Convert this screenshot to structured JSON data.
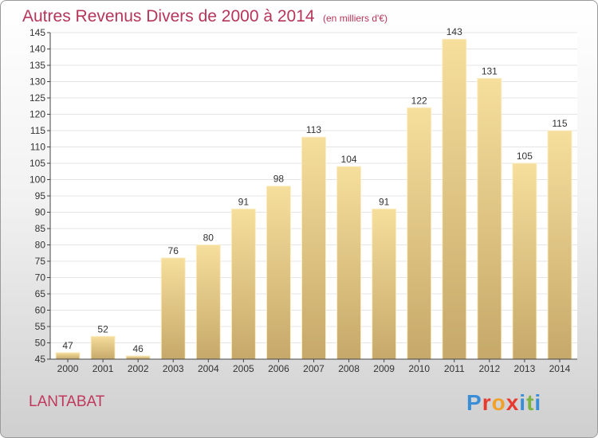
{
  "header": {
    "title": "Autres Revenus Divers de 2000 à 2014",
    "unit": "(en milliers d'€)"
  },
  "footer": {
    "commune": "LANTABAT",
    "logo": "Proxiti"
  },
  "colors": {
    "title": "#b5365a",
    "bar_light": "#f4dc9a",
    "bar_dark": "#c8ac6a",
    "axis": "#444444",
    "grid": "#e2e2e2"
  },
  "chart_data": {
    "type": "bar",
    "categories": [
      "2000",
      "2001",
      "2002",
      "2003",
      "2004",
      "2005",
      "2006",
      "2007",
      "2008",
      "2009",
      "2010",
      "2011",
      "2012",
      "2013",
      "2014"
    ],
    "values": [
      47,
      52,
      46,
      76,
      80,
      91,
      98,
      113,
      104,
      91,
      122,
      143,
      131,
      105,
      115
    ],
    "data_labels": [
      "47",
      "52",
      "46",
      "76",
      "80",
      "91",
      "98",
      "113",
      "104",
      "91",
      "122",
      "143",
      "131",
      "105",
      "115"
    ],
    "ylim": [
      45,
      145
    ],
    "yticks": [
      "45",
      "50",
      "55",
      "60",
      "65",
      "70",
      "75",
      "80",
      "85",
      "90",
      "95",
      "100",
      "105",
      "110",
      "115",
      "120",
      "125",
      "130",
      "135",
      "140",
      "145"
    ],
    "grid": true
  }
}
